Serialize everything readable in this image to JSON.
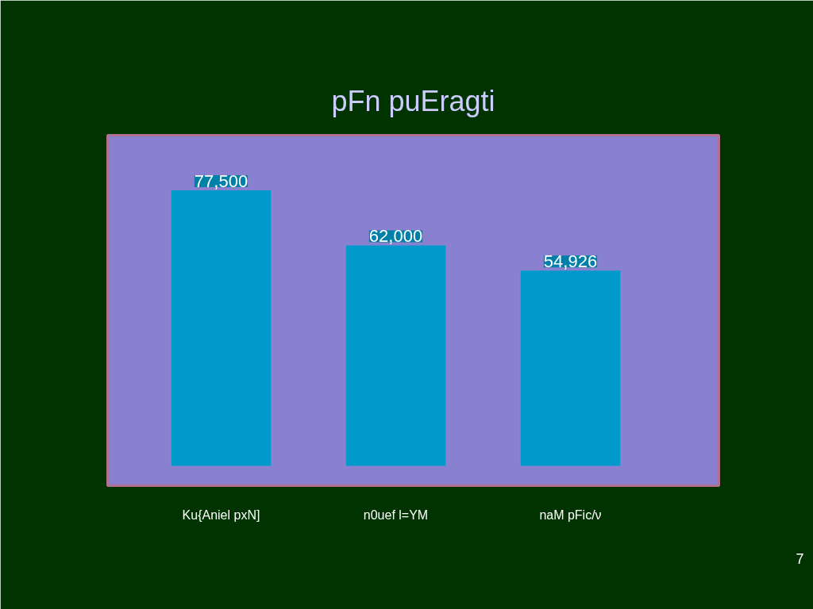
{
  "chart_data": {
    "type": "bar",
    "title": "pFn puEragti",
    "categories": [
      "Ku{Aniel pxN]",
      "n0uef l=YM",
      "naM pFic/ν"
    ],
    "values": [
      77500,
      62000,
      54926
    ],
    "value_labels": [
      "77,500",
      "62,000",
      "54,926"
    ],
    "color": "#0099cc",
    "annotations": [
      "7"
    ]
  }
}
